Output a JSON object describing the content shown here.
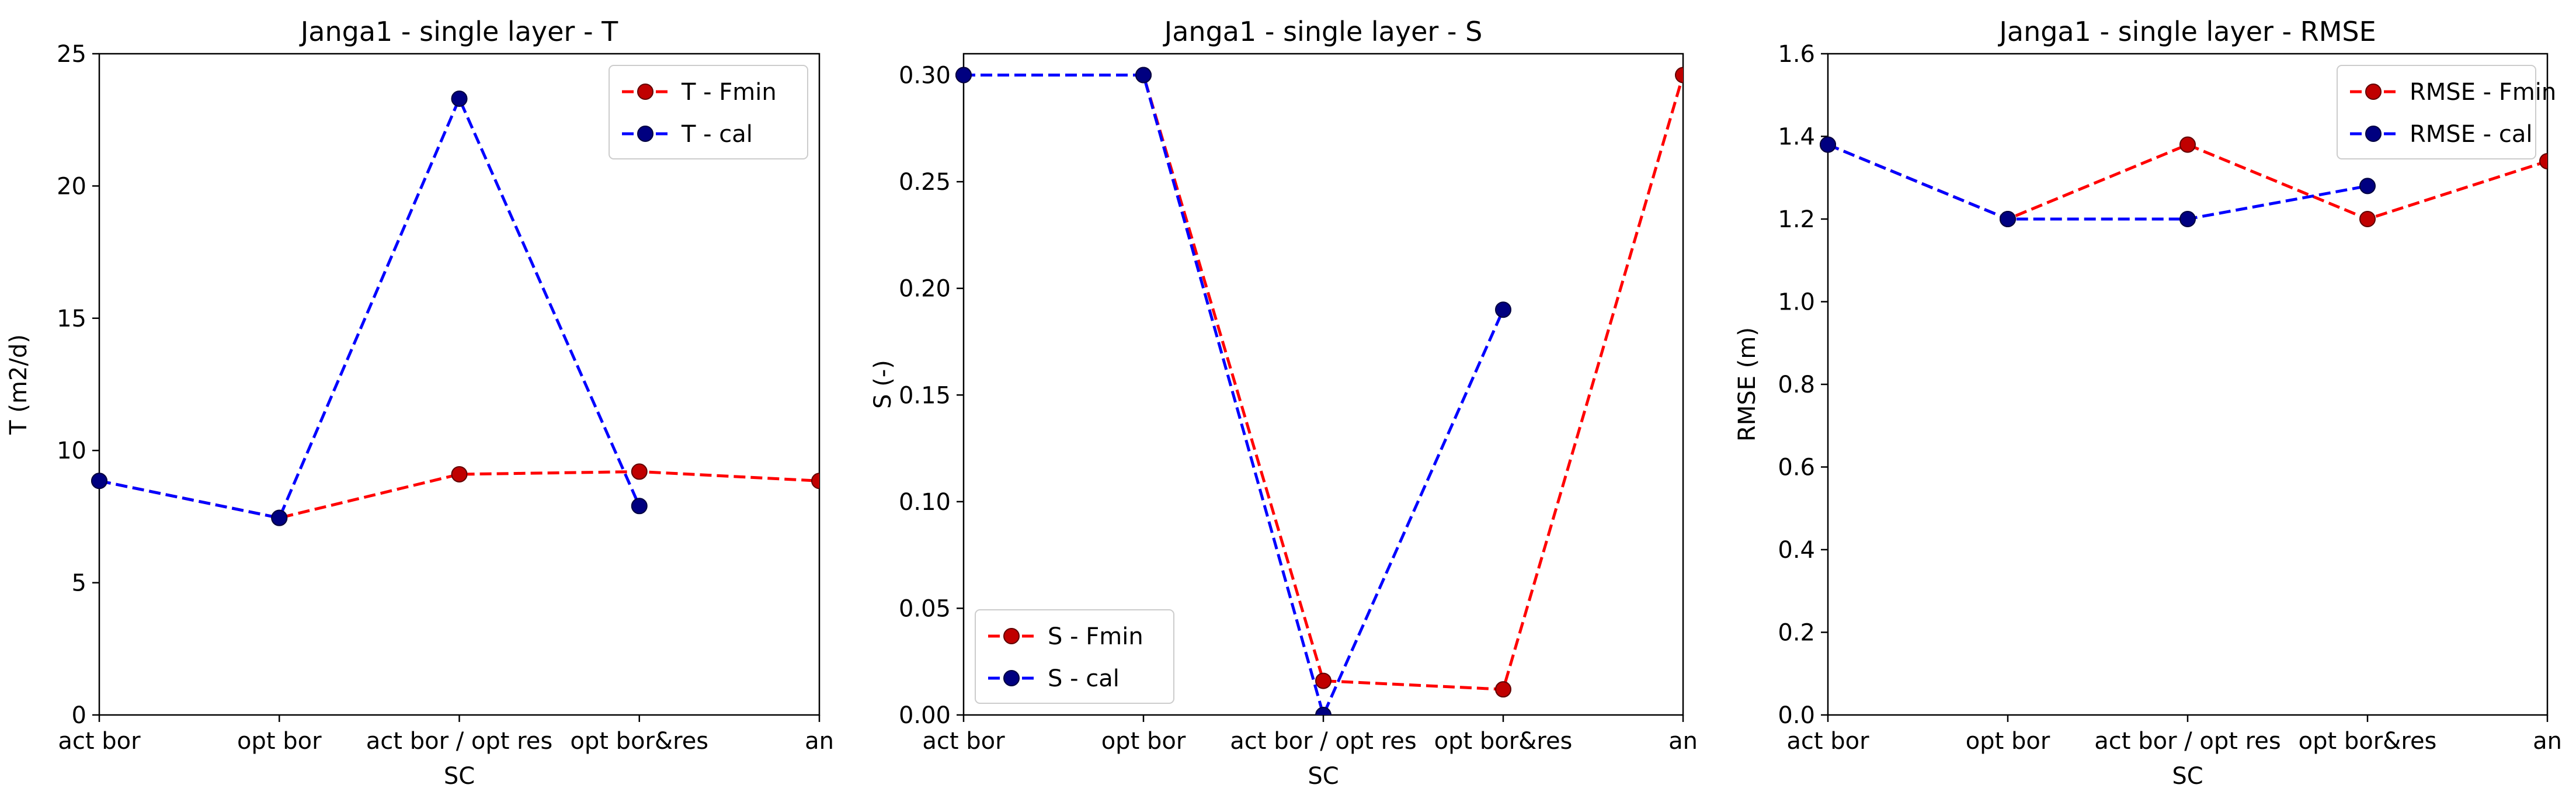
{
  "chart_data": [
    {
      "type": "line",
      "title": "Janga1 - single layer - T",
      "xlabel": "SC",
      "ylabel": "T (m2/d)",
      "categories": [
        "act bor",
        "opt bor",
        "act bor / opt res",
        "opt bor&res",
        "an"
      ],
      "ylim": [
        0,
        25
      ],
      "yticks": [
        0,
        5,
        10,
        15,
        20,
        25
      ],
      "grid": false,
      "legend_position": "top-right",
      "series": [
        {
          "name": "T - Fmin",
          "color": "#ff0000",
          "values": [
            8.85,
            7.45,
            9.1,
            9.2,
            8.85
          ]
        },
        {
          "name": "T - cal",
          "color": "#0000ff",
          "values": [
            8.85,
            7.45,
            23.3,
            7.9,
            null
          ]
        }
      ]
    },
    {
      "type": "line",
      "title": "Janga1 - single layer - S",
      "xlabel": "SC",
      "ylabel": "S (-)",
      "categories": [
        "act bor",
        "opt bor",
        "act bor / opt res",
        "opt bor&res",
        "an"
      ],
      "ylim": [
        0,
        0.31
      ],
      "yticks": [
        0.0,
        0.05,
        0.1,
        0.15,
        0.2,
        0.25,
        0.3
      ],
      "ytick_labels": [
        "0.00",
        "0.05",
        "0.10",
        "0.15",
        "0.20",
        "0.25",
        "0.30"
      ],
      "grid": false,
      "legend_position": "bottom-left",
      "series": [
        {
          "name": "S - Fmin",
          "color": "#ff0000",
          "values": [
            0.3,
            0.3,
            0.016,
            0.012,
            0.3
          ]
        },
        {
          "name": "S - cal",
          "color": "#0000ff",
          "values": [
            0.3,
            0.3,
            0.0,
            0.19,
            null
          ]
        }
      ]
    },
    {
      "type": "line",
      "title": "Janga1 - single layer - RMSE",
      "xlabel": "SC",
      "ylabel": "RMSE (m)",
      "categories": [
        "act bor",
        "opt bor",
        "act bor / opt res",
        "opt bor&res",
        "an"
      ],
      "ylim": [
        0,
        1.6
      ],
      "yticks": [
        0.0,
        0.2,
        0.4,
        0.6,
        0.8,
        1.0,
        1.2,
        1.4,
        1.6
      ],
      "ytick_labels": [
        "0.0",
        "0.2",
        "0.4",
        "0.6",
        "0.8",
        "1.0",
        "1.2",
        "1.4",
        "1.6"
      ],
      "grid": false,
      "legend_position": "top-right",
      "series": [
        {
          "name": "RMSE - Fmin",
          "color": "#ff0000",
          "values": [
            1.38,
            1.2,
            1.38,
            1.2,
            1.34
          ]
        },
        {
          "name": "RMSE - cal",
          "color": "#0000ff",
          "values": [
            1.38,
            1.2,
            1.2,
            1.28,
            null
          ]
        }
      ]
    }
  ]
}
